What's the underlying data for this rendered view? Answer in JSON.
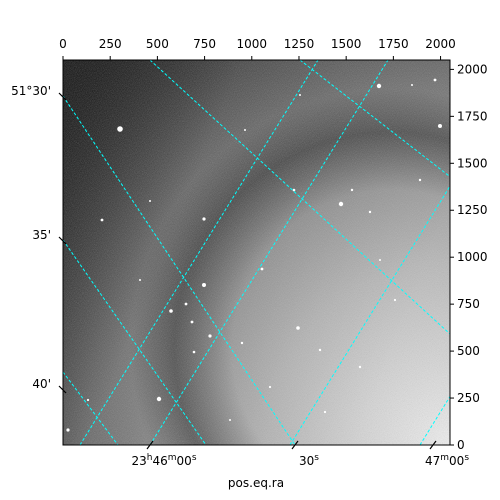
{
  "chart_data": {
    "type": "image",
    "xlabel": "pos.eq.ra",
    "colormap": "gray",
    "grid": true,
    "grid_color": "#00ffff",
    "pixel_axes": {
      "top": {
        "range": [
          0,
          2050
        ],
        "ticks": [
          0,
          250,
          500,
          750,
          1000,
          1250,
          1500,
          1750,
          2000
        ],
        "tick_labels": [
          "0",
          "250",
          "500",
          "750",
          "1000",
          "1250",
          "1500",
          "1750",
          "2000"
        ]
      },
      "right": {
        "range": [
          0,
          2050
        ],
        "ticks": [
          0,
          250,
          500,
          750,
          1000,
          1250,
          1500,
          1750,
          2000
        ],
        "tick_labels": [
          "0",
          "250",
          "500",
          "750",
          "1000",
          "1250",
          "1500",
          "1750",
          "2000"
        ]
      }
    },
    "world_axes": {
      "ra": {
        "tick_labels": [
          {
            "h": "23",
            "m": "46",
            "s": "00"
          },
          {
            "h": "",
            "m": "",
            "s": "30"
          },
          {
            "h": "",
            "m": "47",
            "s": "00"
          }
        ]
      },
      "dec": {
        "tick_labels": [
          "51°30'",
          "35'",
          "40'"
        ]
      }
    }
  }
}
